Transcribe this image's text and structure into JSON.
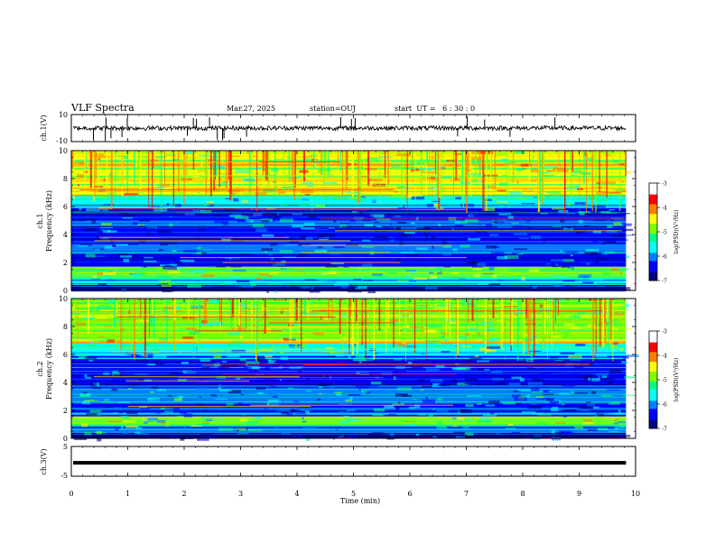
{
  "header": {
    "title": "VLF Spectra",
    "date": "Mar.27, 2025",
    "station": "station=OUJ",
    "start": "start  UT =   6 : 30 : 0"
  },
  "chart_data": [
    {
      "type": "line",
      "panel": "ch1-waveform",
      "ylabel": "ch.1(V)",
      "ylim": [
        -10,
        10
      ],
      "ytick_labels": [
        "10",
        "-10"
      ],
      "baseline": 0,
      "line_color": "#000000"
    },
    {
      "type": "heatmap",
      "panel": "ch1-spectrogram",
      "ylabel_top": "ch.1",
      "ylabel": "Frequency  (kHz)",
      "ylim": [
        0,
        10
      ],
      "yticks": [
        0,
        2,
        4,
        6,
        8,
        10
      ],
      "xlim": [
        0,
        10
      ],
      "colorbar": {
        "label": "log(PSD)(V²/Hz)",
        "range": [
          -7,
          -3
        ],
        "ticks": [
          -3,
          -4,
          -5,
          -6,
          -7
        ],
        "colormap": [
          "#000080",
          "#0000ff",
          "#0080ff",
          "#00ffff",
          "#00ff80",
          "#80ff00",
          "#ffff00",
          "#ff8000",
          "#ff0000",
          "#ffffff"
        ]
      },
      "bands": [
        {
          "lo": 0.0,
          "hi": 0.4,
          "level": -6.7
        },
        {
          "lo": 0.4,
          "hi": 0.9,
          "level": -5.8
        },
        {
          "lo": 0.9,
          "hi": 1.7,
          "level": -5.0
        },
        {
          "lo": 1.7,
          "hi": 2.6,
          "level": -6.4
        },
        {
          "lo": 2.6,
          "hi": 3.3,
          "level": -6.1
        },
        {
          "lo": 3.3,
          "hi": 4.6,
          "level": -6.5
        },
        {
          "lo": 4.6,
          "hi": 5.0,
          "level": -5.9
        },
        {
          "lo": 5.0,
          "hi": 5.9,
          "level": -6.3
        },
        {
          "lo": 5.9,
          "hi": 6.8,
          "level": -5.5
        },
        {
          "lo": 6.8,
          "hi": 10.0,
          "level": -4.6
        }
      ]
    },
    {
      "type": "heatmap",
      "panel": "ch2-spectrogram",
      "ylabel_top": "ch.2",
      "ylabel": "Frequency  (kHz)",
      "ylim": [
        0,
        10
      ],
      "yticks": [
        0,
        2,
        4,
        6,
        8,
        10
      ],
      "xlim": [
        0,
        10
      ],
      "colorbar": {
        "label": "log(PSD)(V²/Hz)",
        "range": [
          -7,
          -3
        ],
        "ticks": [
          -3,
          -4,
          -5,
          -6,
          -7
        ],
        "colormap": [
          "#000080",
          "#0000ff",
          "#0080ff",
          "#00ffff",
          "#00ff80",
          "#80ff00",
          "#ffff00",
          "#ff8000",
          "#ff0000",
          "#ffffff"
        ]
      },
      "bands": [
        {
          "lo": 0.0,
          "hi": 0.4,
          "level": -6.7
        },
        {
          "lo": 0.4,
          "hi": 0.9,
          "level": -5.9
        },
        {
          "lo": 0.9,
          "hi": 1.6,
          "level": -5.0
        },
        {
          "lo": 1.6,
          "hi": 2.5,
          "level": -6.2
        },
        {
          "lo": 2.5,
          "hi": 3.6,
          "level": -6.0
        },
        {
          "lo": 3.6,
          "hi": 5.0,
          "level": -6.3
        },
        {
          "lo": 5.0,
          "hi": 5.9,
          "level": -6.2
        },
        {
          "lo": 5.9,
          "hi": 6.8,
          "level": -5.4
        },
        {
          "lo": 6.8,
          "hi": 10.0,
          "level": -4.7
        }
      ]
    },
    {
      "type": "line",
      "panel": "ch3-waveform",
      "ylabel": "ch.3(V)",
      "ylim": [
        -5,
        5
      ],
      "ytick_labels": [
        "5",
        "-5"
      ],
      "baseline": -0.5,
      "xlabel": "Time  (min)",
      "xlim": [
        0,
        10
      ],
      "xticks": [
        0,
        1,
        2,
        3,
        4,
        5,
        6,
        7,
        8,
        9,
        10
      ],
      "line_color": "#000000"
    }
  ]
}
